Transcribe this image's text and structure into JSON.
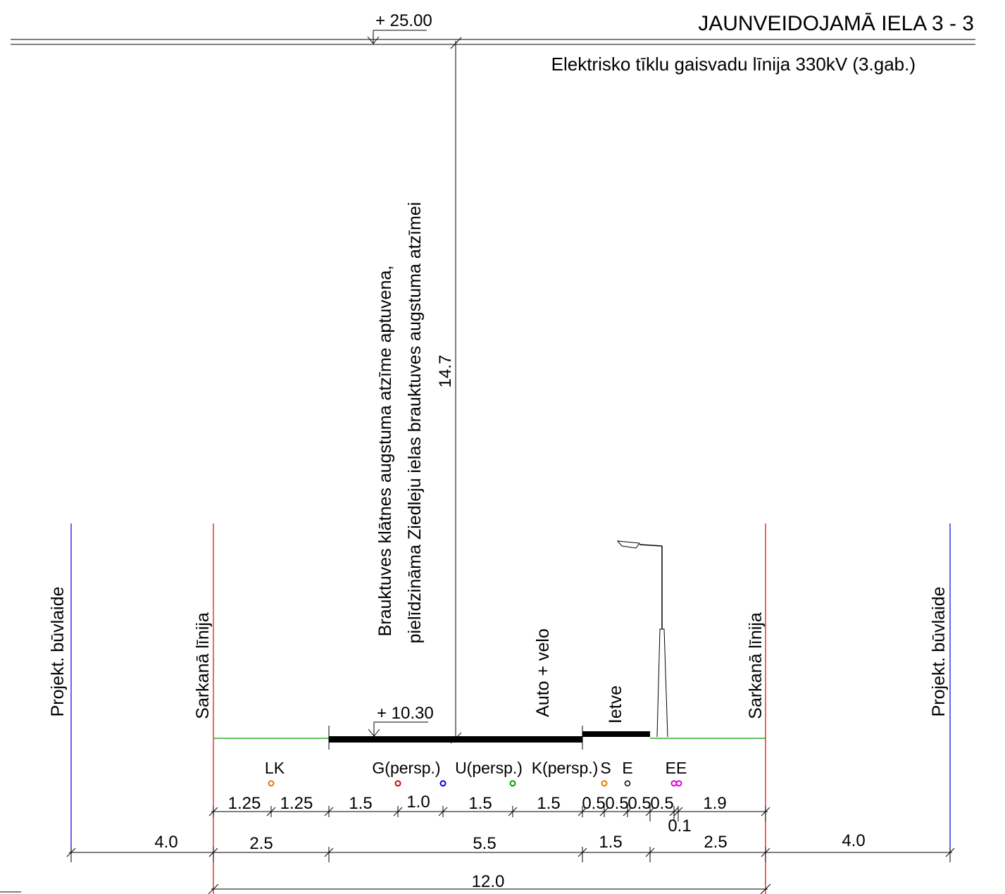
{
  "title": "JAUNVEIDOJAMĀ IELA 3 - 3",
  "subtitle": "Elektrisko tīklu gaisvadu līnija 330kV (3.gab.)",
  "elevations": {
    "top_mark": "+ 25.00",
    "road_mark": "+ 10.30",
    "clearance": "14.7"
  },
  "note": {
    "line1": "Brauktuves klātnes augstuma atzīme aptuvena,",
    "line2": "pielīdzināma Ziedleju ielas brauktuves augstuma atzīmei"
  },
  "labels": {
    "building_line_left": "Projekt. būvlaide",
    "red_line_left": "Sarkanā līnija",
    "red_line_right": "Sarkanā līnija",
    "building_line_right": "Projekt. būvlaide",
    "carriageway": "Auto + velo",
    "sidewalk": "Ietve"
  },
  "utilities": [
    {
      "label": "LK",
      "color": "#e07b00"
    },
    {
      "label": "G(persp.)",
      "color": "#e00000"
    },
    {
      "label": "",
      "color": "#0000e0"
    },
    {
      "label": "U(persp.)",
      "color": "#00a000"
    },
    {
      "label": "K(persp.)",
      "color": "#e07b00"
    },
    {
      "label": "S",
      "color": "#e07b00"
    },
    {
      "label": "E",
      "color": "#000000"
    },
    {
      "label": "EE",
      "color": "#e000e0"
    }
  ],
  "dimensions": {
    "row1": [
      "1.25",
      "1.25",
      "1.5",
      "1.0",
      "1.5",
      "1.5",
      "0.5",
      "0.5",
      "0.5",
      "0.5",
      "1.9"
    ],
    "extra": "0.1",
    "row2": [
      "4.0",
      "2.5",
      "5.5",
      "1.5",
      "2.5",
      "4.0"
    ],
    "total": "12.0"
  },
  "colors": {
    "red_line": "#e00000",
    "building_line": "#0000e0",
    "ground": "#00a000"
  }
}
